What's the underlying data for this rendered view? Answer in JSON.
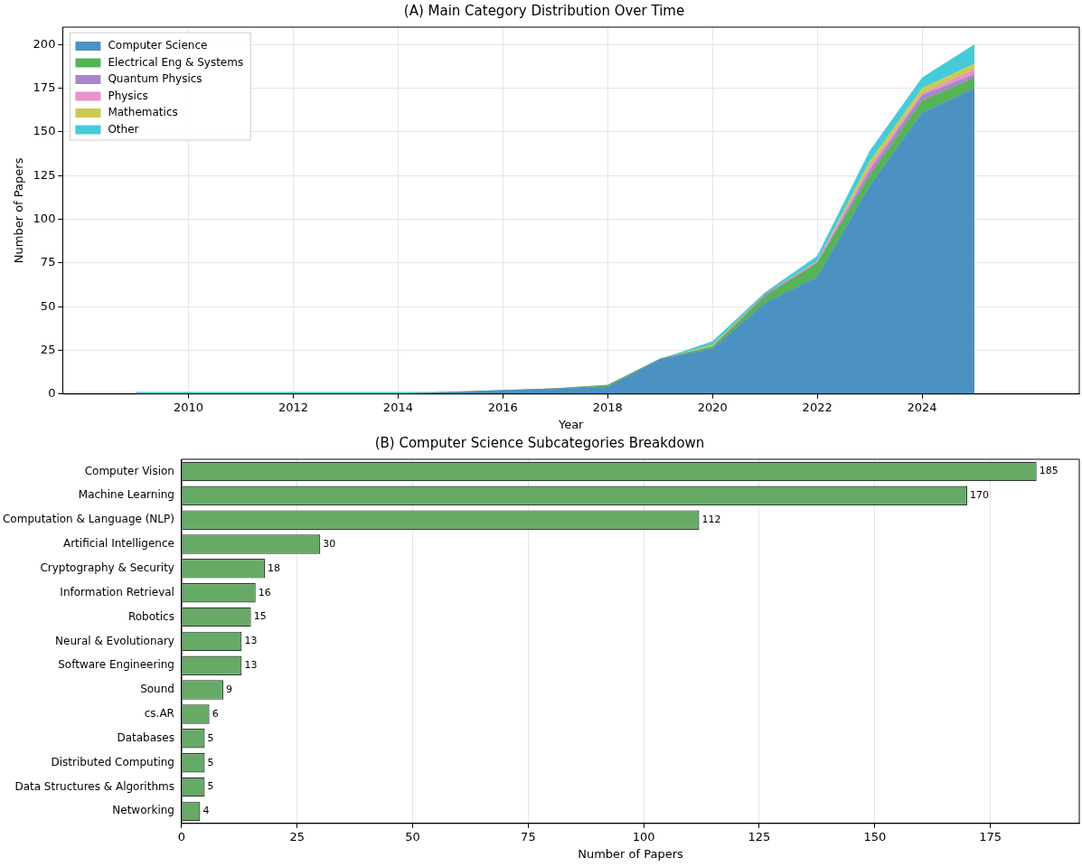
{
  "chart_data": [
    {
      "type": "area",
      "title": "(A) Main Category Distribution Over Time",
      "xlabel": "Year",
      "ylabel": "Number of Papers",
      "stacked": true,
      "x": [
        2009,
        2010,
        2011,
        2012,
        2013,
        2014,
        2015,
        2016,
        2017,
        2018,
        2019,
        2020,
        2021,
        2022,
        2023,
        2024,
        2025
      ],
      "series": [
        {
          "name": "Computer Science",
          "color": "#4b92c3",
          "values": [
            0,
            0,
            0,
            0,
            0,
            0,
            1,
            2,
            3,
            4,
            20,
            26,
            52,
            67,
            119,
            161,
            175
          ]
        },
        {
          "name": "Electrical Eng & Systems",
          "color": "#56b356",
          "values": [
            0,
            0,
            0,
            0,
            0,
            0,
            0,
            0,
            0,
            1,
            0,
            1,
            4,
            8,
            6,
            7,
            6
          ]
        },
        {
          "name": "Quantum Physics",
          "color": "#a985ca",
          "values": [
            0,
            0,
            0,
            0,
            0,
            0,
            0,
            0,
            0,
            0,
            0,
            0,
            1,
            0,
            3,
            3,
            2
          ]
        },
        {
          "name": "Physics",
          "color": "#e892ce",
          "values": [
            0,
            0,
            0,
            0,
            0,
            0,
            0,
            0,
            0,
            0,
            0,
            0,
            0,
            1,
            2,
            1,
            3
          ]
        },
        {
          "name": "Mathematics",
          "color": "#c9ca4e",
          "values": [
            0,
            0,
            0,
            0,
            0,
            0,
            0,
            0,
            0,
            0,
            0,
            1,
            0,
            0,
            3,
            3,
            3
          ]
        },
        {
          "name": "Other",
          "color": "#45cbd8",
          "values": [
            1,
            1,
            1,
            1,
            1,
            1,
            0,
            0,
            0,
            0,
            0,
            2,
            1,
            3,
            6,
            6,
            11
          ]
        }
      ],
      "xlim": [
        2007.6,
        2027
      ],
      "xticks": [
        2010,
        2012,
        2014,
        2016,
        2018,
        2020,
        2022,
        2024
      ],
      "ylim": [
        0,
        210
      ],
      "yticks": [
        0,
        25,
        50,
        75,
        100,
        125,
        150,
        175,
        200
      ],
      "grid": true,
      "legend": "top left"
    },
    {
      "type": "bar",
      "title": "(B) Computer Science Subcategories Breakdown",
      "xlabel": "Number of Papers",
      "orientation": "horizontal",
      "categories": [
        "Computer Vision",
        "Machine Learning",
        "Computation & Language (NLP)",
        "Artificial Intelligence",
        "Cryptography & Security",
        "Information Retrieval",
        "Robotics",
        "Neural & Evolutionary",
        "Software Engineering",
        "Sound",
        "cs.AR",
        "Databases",
        "Distributed Computing",
        "Data Structures & Algorithms",
        "Networking"
      ],
      "values": [
        185,
        170,
        112,
        30,
        18,
        16,
        15,
        13,
        13,
        9,
        6,
        5,
        5,
        5,
        4
      ],
      "color": "#66aa66",
      "data_labels": true,
      "xlim": [
        0,
        194.25
      ],
      "xticks": [
        0,
        25,
        50,
        75,
        100,
        125,
        150,
        175
      ],
      "grid": "x"
    }
  ]
}
